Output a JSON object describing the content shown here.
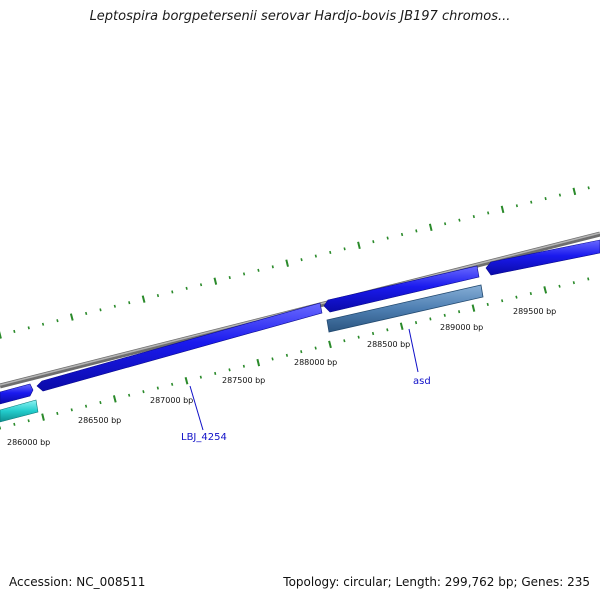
{
  "title": "Leptospira borgpetersenii serovar Hardjo-bovis JB197 chromos...",
  "footer": {
    "accession": "Accession: NC_008511",
    "topology": "Topology: circular; Length: 299,762 bp; Genes: 235"
  },
  "colors": {
    "backbone": "#888888",
    "gene_forward": "#1515e8",
    "gene_selected": "#4e7fb2",
    "gene_cyan": "#22cccc",
    "tick": "#2a8a2a",
    "gene_label": "#1010c8"
  },
  "tick_labels": [
    "286000 bp",
    "286500 bp",
    "287000 bp",
    "287500 bp",
    "288000 bp",
    "288500 bp",
    "289000 bp",
    "289500 bp"
  ],
  "gene_labels": [
    "LBJ_4254",
    "asd"
  ]
}
